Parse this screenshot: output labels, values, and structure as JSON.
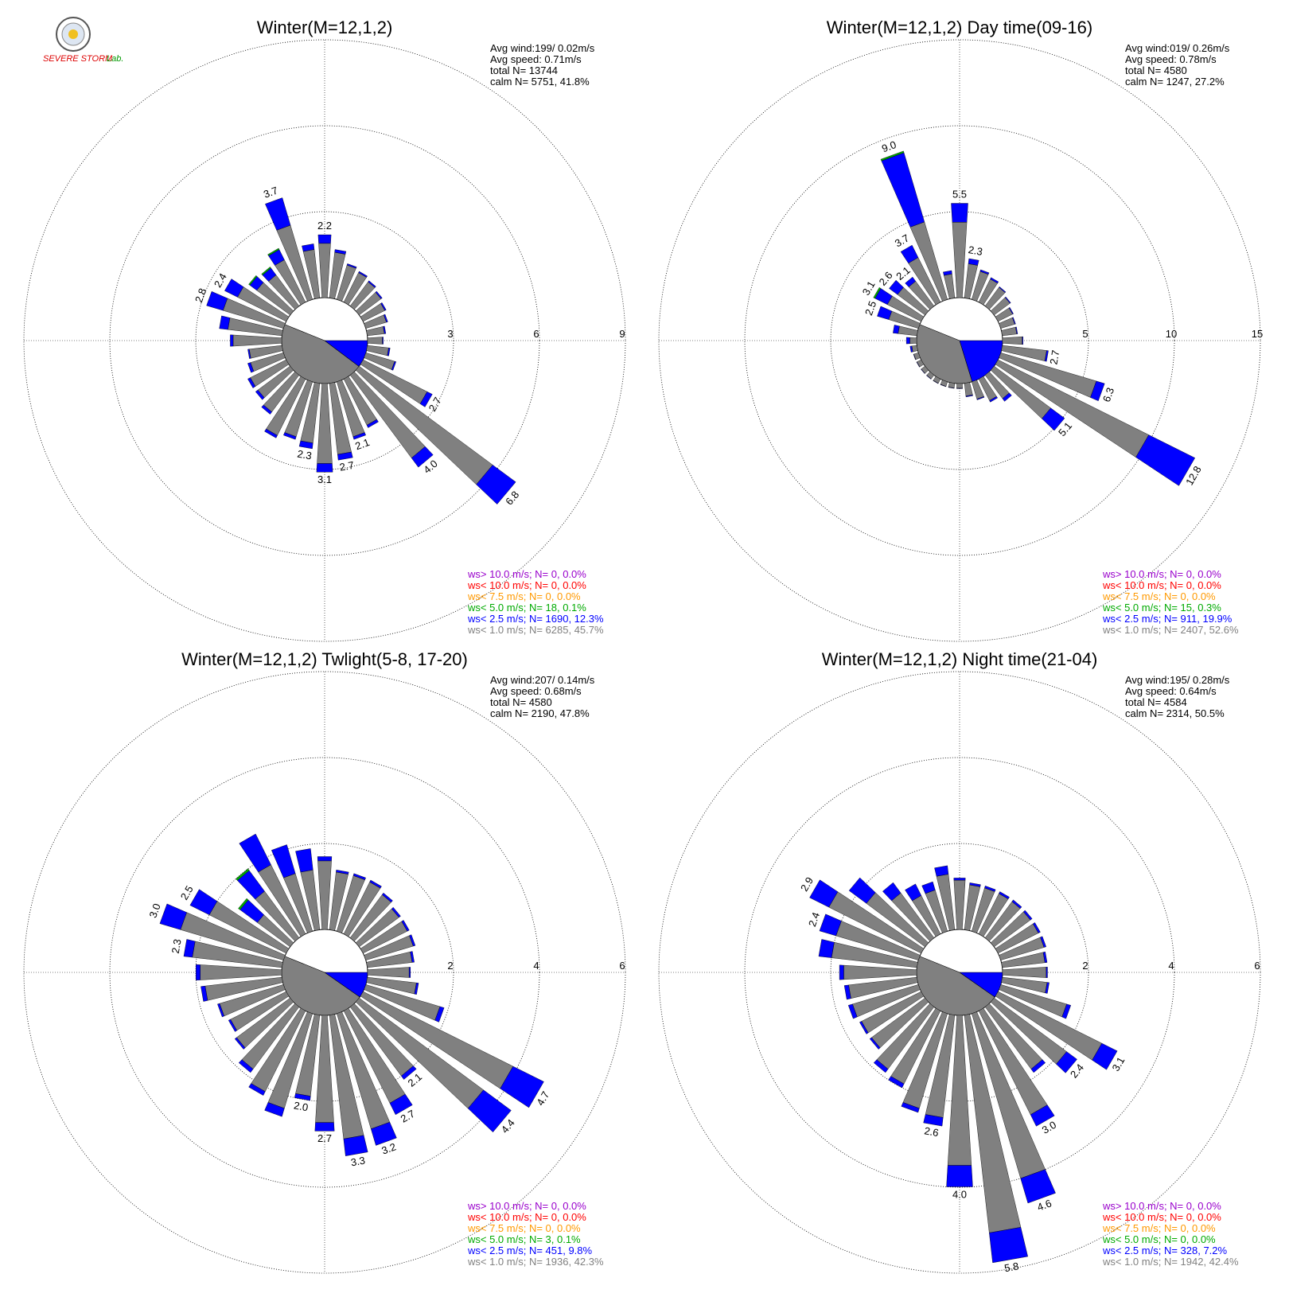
{
  "logo": {
    "text_main": "SEVERE STORM",
    "text_lab": "Lab."
  },
  "colors": {
    "purple": "#9900cc",
    "red": "#ff0000",
    "orange": "#ff9900",
    "green": "#00aa00",
    "blue": "#0000ff",
    "gray": "#808080"
  },
  "chart_data": [
    {
      "type": "wind-rose",
      "title": "Winter(M=12,1,2)",
      "stats": [
        "Avg wind:199/ 0.02m/s",
        "Avg speed: 0.71m/s",
        "total N=      13744",
        "calm N=   5751,  41.8%"
      ],
      "rmax": 9,
      "ring_labels": [
        "3",
        "6",
        "9"
      ],
      "calm_blue_from_deg": 90,
      "calm_blue_to_deg": 127,
      "sector_width_deg": 10,
      "sectors": [
        {
          "dir": 0,
          "total": 2.2,
          "blue": 0.3,
          "label": "2.2"
        },
        {
          "dir": 10,
          "total": 1.7,
          "blue": 0.1
        },
        {
          "dir": 20,
          "total": 1.3,
          "blue": 0.05
        },
        {
          "dir": 30,
          "total": 1.2,
          "blue": 0.05
        },
        {
          "dir": 40,
          "total": 1.1,
          "blue": 0.05
        },
        {
          "dir": 50,
          "total": 1.0,
          "blue": 0.05
        },
        {
          "dir": 60,
          "total": 0.9,
          "blue": 0.05
        },
        {
          "dir": 70,
          "total": 0.8,
          "blue": 0.05
        },
        {
          "dir": 80,
          "total": 0.65,
          "blue": 0.05
        },
        {
          "dir": 90,
          "total": 0.55,
          "blue": 0.03
        },
        {
          "dir": 100,
          "total": 0.8,
          "blue": 0.05
        },
        {
          "dir": 110,
          "total": 1.1,
          "blue": 0.05
        },
        {
          "dir": 120,
          "total": 2.7,
          "blue": 0.2,
          "label": "2.7"
        },
        {
          "dir": 130,
          "total": 6.8,
          "blue": 1.0,
          "label": "6.8"
        },
        {
          "dir": 140,
          "total": 4.0,
          "blue": 0.4,
          "label": "4.0"
        },
        {
          "dir": 150,
          "total": 1.9,
          "blue": 0.1
        },
        {
          "dir": 160,
          "total": 2.1,
          "blue": 0.1,
          "label": "2.1"
        },
        {
          "dir": 170,
          "total": 2.7,
          "blue": 0.2,
          "label": "2.7"
        },
        {
          "dir": 180,
          "total": 3.1,
          "blue": 0.3,
          "label": "3.1"
        },
        {
          "dir": 190,
          "total": 2.3,
          "blue": 0.2,
          "label": "2.3"
        },
        {
          "dir": 200,
          "total": 2.1,
          "blue": 0.1
        },
        {
          "dir": 210,
          "total": 2.3,
          "blue": 0.1
        },
        {
          "dir": 220,
          "total": 1.7,
          "blue": 0.1
        },
        {
          "dir": 230,
          "total": 1.5,
          "blue": 0.1
        },
        {
          "dir": 240,
          "total": 1.5,
          "blue": 0.1
        },
        {
          "dir": 250,
          "total": 1.3,
          "blue": 0.1
        },
        {
          "dir": 260,
          "total": 1.2,
          "blue": 0.05
        },
        {
          "dir": 270,
          "total": 1.8,
          "blue": 0.1
        },
        {
          "dir": 280,
          "total": 2.2,
          "blue": 0.3
        },
        {
          "dir": 290,
          "total": 2.8,
          "blue": 0.6,
          "label": "2.8"
        },
        {
          "dir": 300,
          "total": 2.4,
          "blue": 0.5,
          "label": "2.4"
        },
        {
          "dir": 310,
          "total": 1.8,
          "blue": 0.3,
          "green": 0.05
        },
        {
          "dir": 320,
          "total": 1.7,
          "blue": 0.3,
          "green": 0.05
        },
        {
          "dir": 330,
          "total": 2.1,
          "blue": 0.4,
          "green": 0.05
        },
        {
          "dir": 340,
          "total": 3.7,
          "blue": 1.0,
          "label": "3.7"
        },
        {
          "dir": 350,
          "total": 1.9,
          "blue": 0.2
        }
      ],
      "legend": [
        {
          "text": "ws> 10.0 m/s; N=      0,  0.0%",
          "color": "purple"
        },
        {
          "text": "ws< 10.0 m/s; N=      0,  0.0%",
          "color": "red"
        },
        {
          "text": "ws<  7.5 m/s; N=      0,  0.0%",
          "color": "orange"
        },
        {
          "text": "ws<  5.0 m/s; N=    18,  0.1%",
          "color": "green"
        },
        {
          "text": "ws<  2.5 m/s; N=  1690, 12.3%",
          "color": "blue"
        },
        {
          "text": "ws<  1.0 m/s; N=  6285, 45.7%",
          "color": "gray"
        }
      ]
    },
    {
      "type": "wind-rose",
      "title": "Winter(M=12,1,2) Day time(09-16)",
      "stats": [
        "Avg wind:019/ 0.26m/s",
        "Avg speed: 0.78m/s",
        "total N=        4580",
        "calm N=   1247,  27.2%"
      ],
      "rmax": 15,
      "ring_labels": [
        "5",
        "10",
        "15"
      ],
      "calm_blue_from_deg": 90,
      "calm_blue_to_deg": 163,
      "sector_width_deg": 10,
      "sectors": [
        {
          "dir": 0,
          "total": 5.5,
          "blue": 1.1,
          "label": "5.5"
        },
        {
          "dir": 10,
          "total": 2.3,
          "blue": 0.3,
          "label": "2.3"
        },
        {
          "dir": 20,
          "total": 1.8,
          "blue": 0.1
        },
        {
          "dir": 30,
          "total": 1.6,
          "blue": 0.1
        },
        {
          "dir": 40,
          "total": 1.4,
          "blue": 0.05
        },
        {
          "dir": 50,
          "total": 1.2,
          "blue": 0.05
        },
        {
          "dir": 60,
          "total": 1.0,
          "blue": 0.05
        },
        {
          "dir": 70,
          "total": 0.9,
          "blue": 0.05
        },
        {
          "dir": 80,
          "total": 0.9,
          "blue": 0.05
        },
        {
          "dir": 90,
          "total": 1.2,
          "blue": 0.05
        },
        {
          "dir": 100,
          "total": 2.7,
          "blue": 0.1,
          "label": "2.7"
        },
        {
          "dir": 110,
          "total": 6.3,
          "blue": 0.5,
          "label": "6.3"
        },
        {
          "dir": 120,
          "total": 12.8,
          "blue": 3.0,
          "label": "12.8"
        },
        {
          "dir": 130,
          "total": 5.1,
          "blue": 1.0,
          "label": "5.1"
        },
        {
          "dir": 140,
          "total": 1.9,
          "blue": 0.2
        },
        {
          "dir": 150,
          "total": 1.5,
          "blue": 0.1
        },
        {
          "dir": 160,
          "total": 1.1,
          "blue": 0.05
        },
        {
          "dir": 170,
          "total": 0.8,
          "blue": 0.05
        },
        {
          "dir": 180,
          "total": 0.3,
          "blue": 0.02
        },
        {
          "dir": 190,
          "total": 0.3,
          "blue": 0.02
        },
        {
          "dir": 200,
          "total": 0.3,
          "blue": 0.02
        },
        {
          "dir": 210,
          "total": 0.3,
          "blue": 0.02
        },
        {
          "dir": 220,
          "total": 0.3,
          "blue": 0.02
        },
        {
          "dir": 230,
          "total": 0.3,
          "blue": 0.02
        },
        {
          "dir": 240,
          "total": 0.3,
          "blue": 0.02
        },
        {
          "dir": 250,
          "total": 0.3,
          "blue": 0.02
        },
        {
          "dir": 260,
          "total": 0.4,
          "blue": 0.1
        },
        {
          "dir": 270,
          "total": 0.6,
          "blue": 0.2
        },
        {
          "dir": 280,
          "total": 1.4,
          "blue": 0.3
        },
        {
          "dir": 290,
          "total": 2.5,
          "blue": 0.7,
          "label": "2.5"
        },
        {
          "dir": 300,
          "total": 3.1,
          "blue": 0.8,
          "green": 0.1,
          "label": "3.1"
        },
        {
          "dir": 310,
          "total": 2.6,
          "blue": 0.6,
          "label": "2.6"
        },
        {
          "dir": 320,
          "total": 2.1,
          "blue": 0.3,
          "label": "2.1"
        },
        {
          "dir": 330,
          "total": 3.7,
          "blue": 0.8,
          "label": "3.7"
        },
        {
          "dir": 340,
          "total": 9.0,
          "blue": 4.2,
          "green": 0.1,
          "label": "9.0"
        },
        {
          "dir": 350,
          "total": 1.6,
          "blue": 0.2
        }
      ],
      "legend": [
        {
          "text": "ws> 10.0 m/s; N=      0,  0.0%",
          "color": "purple"
        },
        {
          "text": "ws< 10.0 m/s; N=      0,  0.0%",
          "color": "red"
        },
        {
          "text": "ws<  7.5 m/s; N=      0,  0.0%",
          "color": "orange"
        },
        {
          "text": "ws<  5.0 m/s; N=    15,  0.3%",
          "color": "green"
        },
        {
          "text": "ws<  2.5 m/s; N=   911, 19.9%",
          "color": "blue"
        },
        {
          "text": "ws<  1.0 m/s; N=  2407, 52.6%",
          "color": "gray"
        }
      ]
    },
    {
      "type": "wind-rose",
      "title": "Winter(M=12,1,2) Twlight(5-8, 17-20)",
      "stats": [
        "Avg wind:207/ 0.14m/s",
        "Avg speed: 0.68m/s",
        "total N=        4580",
        "calm N=   2190,  47.8%"
      ],
      "rmax": 6,
      "ring_labels": [
        "2",
        "4",
        "6"
      ],
      "calm_blue_from_deg": 90,
      "calm_blue_to_deg": 125,
      "sector_width_deg": 10,
      "sectors": [
        {
          "dir": 0,
          "total": 1.7,
          "blue": 0.1
        },
        {
          "dir": 10,
          "total": 1.4,
          "blue": 0.05
        },
        {
          "dir": 20,
          "total": 1.4,
          "blue": 0.05
        },
        {
          "dir": 30,
          "total": 1.4,
          "blue": 0.05
        },
        {
          "dir": 40,
          "total": 1.3,
          "blue": 0.05
        },
        {
          "dir": 50,
          "total": 1.2,
          "blue": 0.05
        },
        {
          "dir": 60,
          "total": 1.2,
          "blue": 0.05
        },
        {
          "dir": 70,
          "total": 1.2,
          "blue": 0.05
        },
        {
          "dir": 80,
          "total": 1.1,
          "blue": 0.05
        },
        {
          "dir": 90,
          "total": 1.0,
          "blue": 0.03
        },
        {
          "dir": 100,
          "total": 1.2,
          "blue": 0.05
        },
        {
          "dir": 110,
          "total": 1.9,
          "blue": 0.1
        },
        {
          "dir": 120,
          "total": 4.7,
          "blue": 0.8,
          "label": "4.7"
        },
        {
          "dir": 130,
          "total": 4.4,
          "blue": 0.8,
          "label": "4.4"
        },
        {
          "dir": 140,
          "total": 2.1,
          "blue": 0.1,
          "label": "2.1"
        },
        {
          "dir": 150,
          "total": 2.7,
          "blue": 0.3,
          "label": "2.7"
        },
        {
          "dir": 160,
          "total": 3.2,
          "blue": 0.4,
          "label": "3.2"
        },
        {
          "dir": 170,
          "total": 3.3,
          "blue": 0.4,
          "label": "3.3"
        },
        {
          "dir": 180,
          "total": 2.7,
          "blue": 0.2,
          "label": "2.7"
        },
        {
          "dir": 190,
          "total": 2.0,
          "blue": 0.1,
          "label": "2.0"
        },
        {
          "dir": 200,
          "total": 2.5,
          "blue": 0.2
        },
        {
          "dir": 210,
          "total": 2.2,
          "blue": 0.1
        },
        {
          "dir": 220,
          "total": 1.9,
          "blue": 0.1
        },
        {
          "dir": 230,
          "total": 1.6,
          "blue": 0.05
        },
        {
          "dir": 240,
          "total": 1.5,
          "blue": 0.05
        },
        {
          "dir": 250,
          "total": 1.6,
          "blue": 0.05
        },
        {
          "dir": 260,
          "total": 1.9,
          "blue": 0.1
        },
        {
          "dir": 270,
          "total": 2.0,
          "blue": 0.1
        },
        {
          "dir": 280,
          "total": 2.3,
          "blue": 0.2,
          "label": "2.3"
        },
        {
          "dir": 290,
          "total": 3.0,
          "blue": 0.5,
          "label": "3.0"
        },
        {
          "dir": 300,
          "total": 2.5,
          "blue": 0.5,
          "label": "2.5"
        },
        {
          "dir": 310,
          "total": 1.5,
          "blue": 0.5,
          "green": 0.05
        },
        {
          "dir": 320,
          "total": 2.0,
          "blue": 0.6,
          "green": 0.05
        },
        {
          "dir": 330,
          "total": 2.6,
          "blue": 0.8
        },
        {
          "dir": 340,
          "total": 2.1,
          "blue": 0.7
        },
        {
          "dir": 350,
          "total": 1.9,
          "blue": 0.5
        }
      ],
      "legend": [
        {
          "text": "ws> 10.0 m/s; N=      0,  0.0%",
          "color": "purple"
        },
        {
          "text": "ws< 10.0 m/s; N=      0,  0.0%",
          "color": "red"
        },
        {
          "text": "ws<  7.5 m/s; N=      0,  0.0%",
          "color": "orange"
        },
        {
          "text": "ws<  5.0 m/s; N=      3,  0.1%",
          "color": "green"
        },
        {
          "text": "ws<  2.5 m/s; N=   451,  9.8%",
          "color": "blue"
        },
        {
          "text": "ws<  1.0 m/s; N=  1936, 42.3%",
          "color": "gray"
        }
      ]
    },
    {
      "type": "wind-rose",
      "title": "Winter(M=12,1,2) Night time(21-04)",
      "stats": [
        "Avg wind:195/ 0.28m/s",
        "Avg speed: 0.64m/s",
        "total N=        4584",
        "calm N=   2314,  50.5%"
      ],
      "rmax": 6,
      "ring_labels": [
        "2",
        "4",
        "6"
      ],
      "calm_blue_from_deg": 90,
      "calm_blue_to_deg": 125,
      "sector_width_deg": 10,
      "sectors": [
        {
          "dir": 0,
          "total": 1.2,
          "blue": 0.05
        },
        {
          "dir": 10,
          "total": 1.1,
          "blue": 0.05
        },
        {
          "dir": 20,
          "total": 1.1,
          "blue": 0.05
        },
        {
          "dir": 30,
          "total": 1.1,
          "blue": 0.05
        },
        {
          "dir": 40,
          "total": 1.1,
          "blue": 0.05
        },
        {
          "dir": 50,
          "total": 1.1,
          "blue": 0.05
        },
        {
          "dir": 60,
          "total": 1.1,
          "blue": 0.05
        },
        {
          "dir": 70,
          "total": 1.1,
          "blue": 0.05
        },
        {
          "dir": 80,
          "total": 1.05,
          "blue": 0.05
        },
        {
          "dir": 90,
          "total": 1.05,
          "blue": 0.03
        },
        {
          "dir": 100,
          "total": 1.1,
          "blue": 0.05
        },
        {
          "dir": 110,
          "total": 1.7,
          "blue": 0.1
        },
        {
          "dir": 120,
          "total": 3.1,
          "blue": 0.4,
          "label": "3.1"
        },
        {
          "dir": 130,
          "total": 2.4,
          "blue": 0.3,
          "label": "2.4"
        },
        {
          "dir": 140,
          "total": 1.9,
          "blue": 0.1
        },
        {
          "dir": 150,
          "total": 3.0,
          "blue": 0.3,
          "label": "3.0"
        },
        {
          "dir": 160,
          "total": 4.6,
          "blue": 0.6,
          "label": "4.6"
        },
        {
          "dir": 170,
          "total": 5.8,
          "blue": 0.7,
          "label": "5.8"
        },
        {
          "dir": 180,
          "total": 4.0,
          "blue": 0.5,
          "label": "4.0"
        },
        {
          "dir": 190,
          "total": 2.6,
          "blue": 0.2,
          "label": "2.6"
        },
        {
          "dir": 200,
          "total": 2.4,
          "blue": 0.1
        },
        {
          "dir": 210,
          "total": 2.0,
          "blue": 0.1
        },
        {
          "dir": 220,
          "total": 1.9,
          "blue": 0.1
        },
        {
          "dir": 230,
          "total": 1.6,
          "blue": 0.05
        },
        {
          "dir": 240,
          "total": 1.6,
          "blue": 0.05
        },
        {
          "dir": 250,
          "total": 1.7,
          "blue": 0.1
        },
        {
          "dir": 260,
          "total": 1.7,
          "blue": 0.1
        },
        {
          "dir": 270,
          "total": 1.8,
          "blue": 0.1
        },
        {
          "dir": 280,
          "total": 2.3,
          "blue": 0.3
        },
        {
          "dir": 290,
          "total": 2.4,
          "blue": 0.4,
          "label": "2.4"
        },
        {
          "dir": 300,
          "total": 2.9,
          "blue": 0.5,
          "label": "2.9"
        },
        {
          "dir": 310,
          "total": 2.2,
          "blue": 0.5
        },
        {
          "dir": 320,
          "total": 1.6,
          "blue": 0.3
        },
        {
          "dir": 330,
          "total": 1.3,
          "blue": 0.3
        },
        {
          "dir": 340,
          "total": 1.2,
          "blue": 0.2
        },
        {
          "dir": 350,
          "total": 1.5,
          "blue": 0.2
        }
      ],
      "legend": [
        {
          "text": "ws> 10.0 m/s; N=      0,  0.0%",
          "color": "purple"
        },
        {
          "text": "ws< 10.0 m/s; N=      0,  0.0%",
          "color": "red"
        },
        {
          "text": "ws<  7.5 m/s; N=      0,  0.0%",
          "color": "orange"
        },
        {
          "text": "ws<  5.0 m/s; N=      0,  0.0%",
          "color": "green"
        },
        {
          "text": "ws<  2.5 m/s; N=   328,  7.2%",
          "color": "blue"
        },
        {
          "text": "ws<  1.0 m/s; N=  1942, 42.4%",
          "color": "gray"
        }
      ]
    }
  ]
}
